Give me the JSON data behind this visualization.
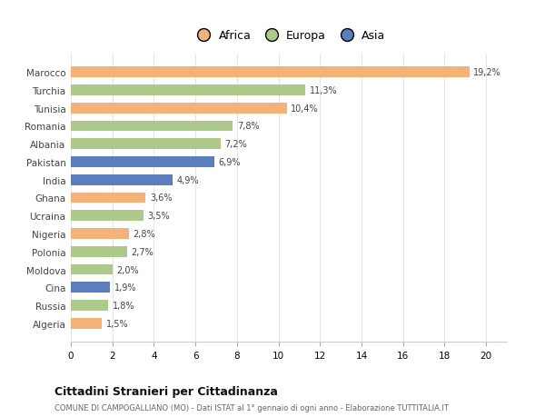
{
  "categories": [
    "Algeria",
    "Russia",
    "Cina",
    "Moldova",
    "Polonia",
    "Nigeria",
    "Ucraina",
    "Ghana",
    "India",
    "Pakistan",
    "Albania",
    "Romania",
    "Tunisia",
    "Turchia",
    "Marocco"
  ],
  "values": [
    1.5,
    1.8,
    1.9,
    2.0,
    2.7,
    2.8,
    3.5,
    3.6,
    4.9,
    6.9,
    7.2,
    7.8,
    10.4,
    11.3,
    19.2
  ],
  "continents": [
    "Africa",
    "Europa",
    "Asia",
    "Europa",
    "Europa",
    "Africa",
    "Europa",
    "Africa",
    "Asia",
    "Asia",
    "Europa",
    "Europa",
    "Africa",
    "Europa",
    "Africa"
  ],
  "colors": {
    "Africa": "#F2B27A",
    "Europa": "#AECA8A",
    "Asia": "#5B7FBE"
  },
  "labels": [
    "1,5%",
    "1,8%",
    "1,9%",
    "2,0%",
    "2,7%",
    "2,8%",
    "3,5%",
    "3,6%",
    "4,9%",
    "6,9%",
    "7,2%",
    "7,8%",
    "10,4%",
    "11,3%",
    "19,2%"
  ],
  "xlim": [
    0,
    21
  ],
  "xticks": [
    0,
    2,
    4,
    6,
    8,
    10,
    12,
    14,
    16,
    18,
    20
  ],
  "title": "Cittadini Stranieri per Cittadinanza",
  "subtitle": "COMUNE DI CAMPOGALLIANO (MO) - Dati ISTAT al 1° gennaio di ogni anno - Elaborazione TUTTITALIA.IT",
  "legend_labels": [
    "Africa",
    "Europa",
    "Asia"
  ],
  "legend_colors": [
    "#F2B27A",
    "#AECA8A",
    "#5B7FBE"
  ],
  "background_color": "#FFFFFF",
  "bar_height": 0.6
}
